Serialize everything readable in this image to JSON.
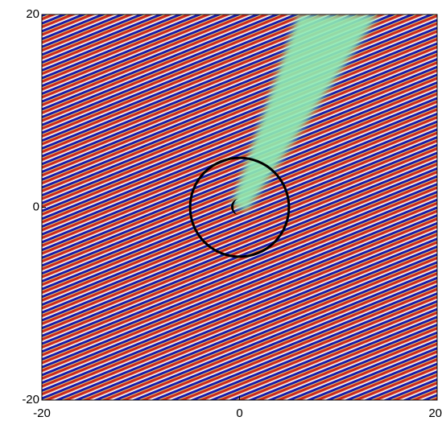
{
  "chart_data": {
    "type": "field",
    "xlim": [
      -20,
      20
    ],
    "ylim": [
      -20,
      20
    ],
    "xticks": [
      -20,
      0,
      20
    ],
    "yticks": [
      -20,
      0,
      20
    ],
    "circle": {
      "center": [
        0,
        0
      ],
      "radius": 5
    }
  }
}
